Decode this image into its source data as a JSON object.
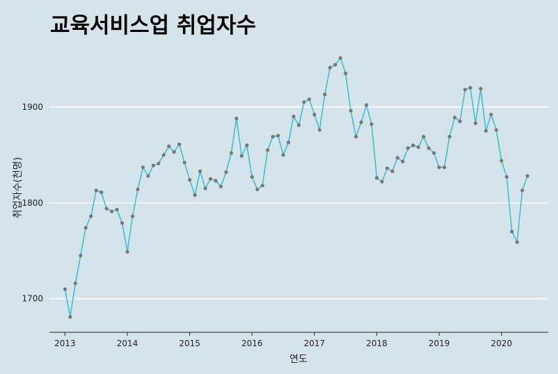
{
  "chart_data": {
    "type": "line",
    "title": "교육서비스업 취업자수",
    "xlabel": "연도",
    "ylabel": "취업자수(천명)",
    "x_ticks": [
      "2013",
      "2014",
      "2015",
      "2016",
      "2017",
      "2018",
      "2019",
      "2020"
    ],
    "y_ticks": [
      1700,
      1800,
      1900
    ],
    "xlim": [
      "2012-10",
      "2020-10"
    ],
    "ylim": [
      1665,
      1968
    ],
    "grid": "horizontal",
    "colors": {
      "background": "#d5e4eb",
      "line": "#3cbfd2",
      "point": "#777777",
      "grid": "#ffffff"
    },
    "x": [
      "2013-01",
      "2013-02",
      "2013-03",
      "2013-04",
      "2013-05",
      "2013-06",
      "2013-07",
      "2013-08",
      "2013-09",
      "2013-10",
      "2013-11",
      "2013-12",
      "2014-01",
      "2014-02",
      "2014-03",
      "2014-04",
      "2014-05",
      "2014-06",
      "2014-07",
      "2014-08",
      "2014-09",
      "2014-10",
      "2014-11",
      "2014-12",
      "2015-01",
      "2015-02",
      "2015-03",
      "2015-04",
      "2015-05",
      "2015-06",
      "2015-07",
      "2015-08",
      "2015-09",
      "2015-10",
      "2015-11",
      "2015-12",
      "2016-01",
      "2016-02",
      "2016-03",
      "2016-04",
      "2016-05",
      "2016-06",
      "2016-07",
      "2016-08",
      "2016-09",
      "2016-10",
      "2016-11",
      "2016-12",
      "2017-01",
      "2017-02",
      "2017-03",
      "2017-04",
      "2017-05",
      "2017-06",
      "2017-07",
      "2017-08",
      "2017-09",
      "2017-10",
      "2017-11",
      "2017-12",
      "2018-01",
      "2018-02",
      "2018-03",
      "2018-04",
      "2018-05",
      "2018-06",
      "2018-07",
      "2018-08",
      "2018-09",
      "2018-10",
      "2018-11",
      "2018-12",
      "2019-01",
      "2019-02",
      "2019-03",
      "2019-04",
      "2019-05",
      "2019-06",
      "2019-07",
      "2019-08",
      "2019-09",
      "2019-10",
      "2019-11",
      "2019-12",
      "2020-01",
      "2020-02",
      "2020-03",
      "2020-04",
      "2020-05",
      "2020-06"
    ],
    "values": [
      1710,
      1681,
      1716,
      1745,
      1774,
      1786,
      1813,
      1811,
      1794,
      1791,
      1793,
      1779,
      1749,
      1786,
      1814,
      1837,
      1828,
      1839,
      1841,
      1850,
      1859,
      1853,
      1861,
      1842,
      1824,
      1808,
      1833,
      1815,
      1825,
      1823,
      1817,
      1832,
      1852,
      1888,
      1849,
      1860,
      1827,
      1814,
      1818,
      1855,
      1869,
      1870,
      1850,
      1863,
      1890,
      1881,
      1905,
      1908,
      1892,
      1876,
      1913,
      1941,
      1944,
      1951,
      1935,
      1896,
      1869,
      1884,
      1902,
      1882,
      1826,
      1822,
      1836,
      1833,
      1847,
      1843,
      1857,
      1860,
      1858,
      1869,
      1857,
      1852,
      1837,
      1837,
      1869,
      1889,
      1885,
      1918,
      1920,
      1883,
      1919,
      1875,
      1892,
      1876,
      1844,
      1827,
      1770,
      1759,
      1813,
      1828
    ]
  }
}
